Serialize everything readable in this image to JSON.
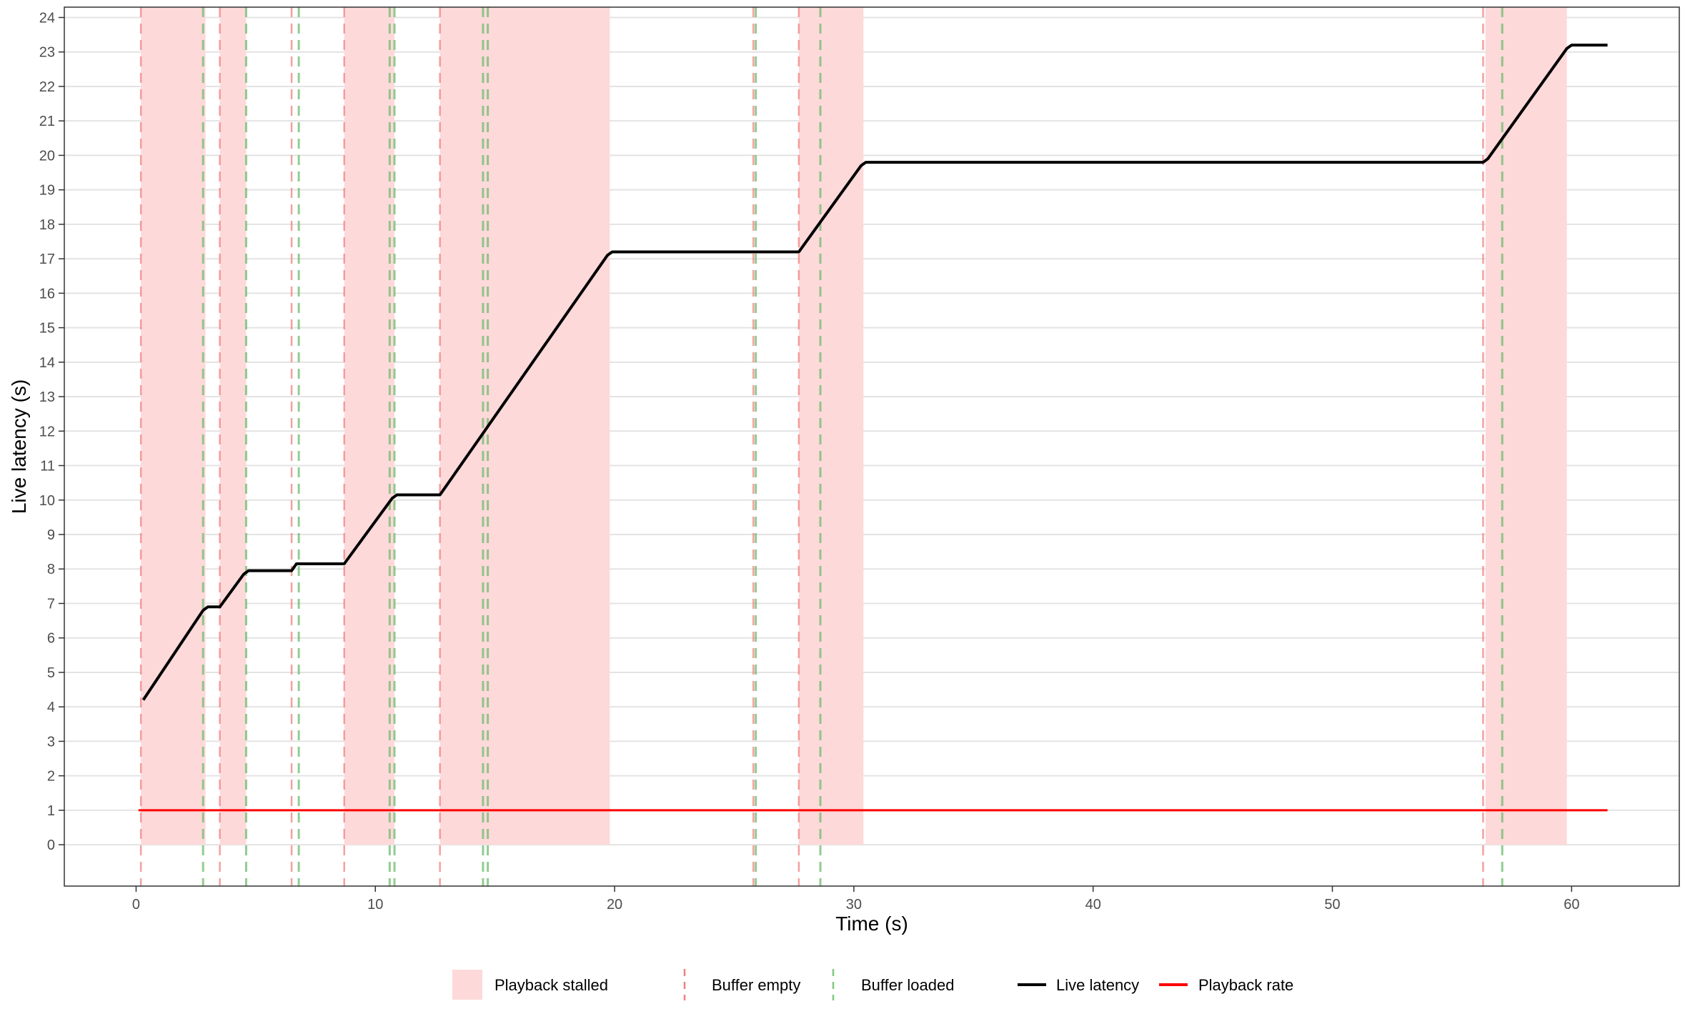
{
  "chart_data": {
    "type": "line",
    "title": "",
    "xlabel": "Time (s)",
    "ylabel": "Live latency (s)",
    "xlim": [
      -3,
      64.5
    ],
    "ylim": [
      -1.2,
      24.3
    ],
    "x_ticks": [
      0,
      10,
      20,
      30,
      40,
      50,
      60
    ],
    "y_ticks": [
      0,
      1,
      2,
      3,
      4,
      5,
      6,
      7,
      8,
      9,
      10,
      11,
      12,
      13,
      14,
      15,
      16,
      17,
      18,
      19,
      20,
      21,
      22,
      23,
      24
    ],
    "grid": true,
    "legend_position": "bottom",
    "stall_intervals": [
      [
        0.2,
        2.9
      ],
      [
        3.5,
        4.6
      ],
      [
        8.7,
        10.8
      ],
      [
        12.7,
        19.8
      ],
      [
        27.7,
        30.4
      ],
      [
        56.4,
        59.8
      ]
    ],
    "buffer_empty_times": [
      0.2,
      3.5,
      6.5,
      8.7,
      12.7,
      25.8,
      27.7,
      56.3
    ],
    "buffer_loaded_times": [
      2.8,
      4.6,
      6.8,
      10.6,
      10.8,
      14.5,
      14.7,
      25.9,
      28.6,
      57.1
    ],
    "series": [
      {
        "name": "Live latency",
        "color": "#000000",
        "x": [
          0.3,
          2.8,
          3.0,
          3.5,
          4.5,
          4.7,
          6.5,
          6.7,
          8.7,
          10.7,
          10.9,
          12.7,
          19.7,
          19.9,
          27.7,
          30.3,
          30.5,
          56.3,
          56.5,
          59.8,
          60.0,
          61.5
        ],
        "y": [
          4.2,
          6.8,
          6.9,
          6.9,
          7.85,
          7.95,
          7.95,
          8.15,
          8.15,
          10.05,
          10.15,
          10.15,
          17.1,
          17.2,
          17.2,
          19.7,
          19.8,
          19.8,
          19.9,
          23.1,
          23.2,
          23.2
        ]
      },
      {
        "name": "Playback rate",
        "color": "#ff0000",
        "x": [
          0.1,
          61.5
        ],
        "y": [
          1,
          1
        ]
      }
    ],
    "legend": [
      {
        "name": "Playback stalled",
        "kind": "fill",
        "color": "#fdd9da"
      },
      {
        "name": "Buffer empty",
        "kind": "dash",
        "color": "#f08080"
      },
      {
        "name": "Buffer loaded",
        "kind": "dash",
        "color": "#7fc97f"
      },
      {
        "name": "Live latency",
        "kind": "line",
        "color": "#000000"
      },
      {
        "name": "Playback rate",
        "kind": "line",
        "color": "#ff0000"
      }
    ]
  }
}
